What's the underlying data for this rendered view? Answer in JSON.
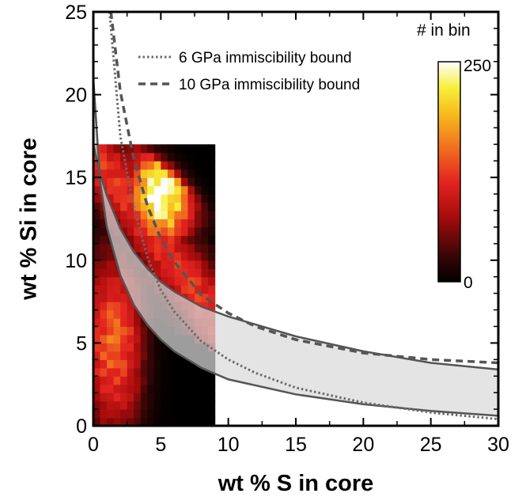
{
  "chart_data": {
    "type": "heatmap",
    "xlabel": "wt % S in core",
    "ylabel": "wt % Si in core",
    "xlim": [
      0,
      30
    ],
    "ylim": [
      0,
      25
    ],
    "x_ticks": [
      "0",
      "5",
      "10",
      "15",
      "20",
      "25",
      "30"
    ],
    "y_ticks": [
      "0",
      "5",
      "10",
      "15",
      "20",
      "25"
    ],
    "grid": false,
    "heatmap": {
      "x_range": [
        0,
        9
      ],
      "y_range": [
        0,
        17
      ],
      "colormap": "hot",
      "colorbar_title": "# in bin",
      "colorbar_max_label": "250",
      "colorbar_min_label": "0",
      "value_min": 0,
      "value_max": 250
    },
    "series": [
      {
        "name": "6 GPa immiscibility bound",
        "style": "dotted",
        "color": "#6a6a6a",
        "x": [
          1.2,
          2,
          3,
          4,
          5,
          6,
          8,
          10,
          12,
          15,
          20,
          25,
          30
        ],
        "y": [
          25,
          17.5,
          13.2,
          10.2,
          8.2,
          6.9,
          5.1,
          4.0,
          3.2,
          2.3,
          1.4,
          0.8,
          0.4
        ]
      },
      {
        "name": "10 GPa immiscibility bound",
        "style": "dashed",
        "color": "#555555",
        "x": [
          1.3,
          2,
          3,
          4,
          5,
          6,
          8,
          10,
          12,
          15,
          20,
          25,
          30
        ],
        "y": [
          25,
          20.2,
          16.1,
          13.3,
          11.3,
          9.9,
          7.9,
          6.8,
          6.0,
          5.2,
          4.4,
          4.0,
          3.8
        ]
      }
    ],
    "band": {
      "upper": {
        "x": [
          0,
          0.5,
          1,
          2,
          3,
          4,
          5,
          6,
          8,
          10,
          15,
          20,
          25,
          30
        ],
        "y": [
          17,
          15.2,
          13.9,
          11.9,
          10.5,
          9.5,
          8.7,
          8.1,
          7.2,
          6.6,
          5.4,
          4.5,
          3.8,
          3.4
        ]
      },
      "lower": {
        "x": [
          0,
          0.5,
          1,
          2,
          3,
          4,
          5,
          6,
          8,
          10,
          15,
          20,
          25,
          30
        ],
        "y": [
          21,
          14.8,
          12.0,
          9.1,
          7.3,
          6.1,
          5.2,
          4.5,
          3.5,
          2.8,
          1.9,
          1.3,
          0.9,
          0.6
        ]
      },
      "fill": "#d9d9d9",
      "edge": "#555555"
    }
  }
}
